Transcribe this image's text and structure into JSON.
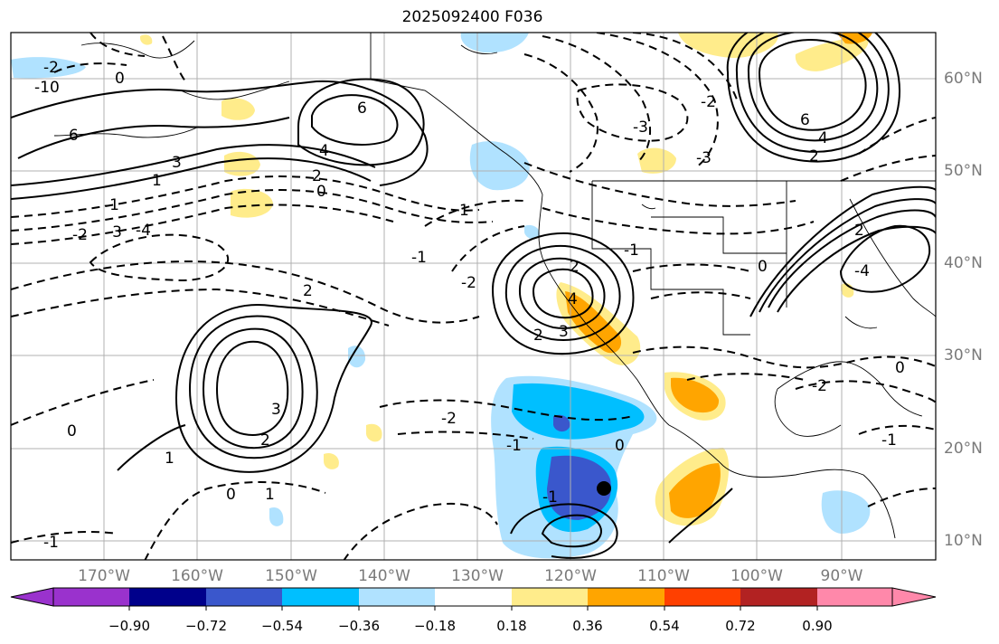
{
  "title": "2025092400 F036",
  "map": {
    "lon_labels": [
      "170°W",
      "160°W",
      "150°W",
      "140°W",
      "130°W",
      "120°W",
      "110°W",
      "100°W",
      "90°W"
    ],
    "lat_labels": [
      "60°N",
      "50°N",
      "40°N",
      "30°N",
      "20°N",
      "10°N"
    ],
    "contour_labels": [
      "6",
      "4",
      "3",
      "2",
      "1",
      "0",
      "-2",
      "-3",
      "-4",
      "-1",
      "-10",
      "6",
      "4",
      "2",
      "0",
      "2",
      "1",
      "-1",
      "-2",
      "-3",
      "3",
      "2",
      "1",
      "0",
      "-1",
      "-2",
      "-2",
      "-1",
      "0",
      "1",
      "2",
      "3",
      "4",
      "6",
      "-4",
      "-3",
      "-2",
      "-1",
      "0",
      "2",
      "2",
      "0",
      "-1",
      "-2",
      "-1",
      "0"
    ],
    "marker": "black-dot"
  },
  "colorbar": {
    "tick_labels": [
      "−0.90",
      "−0.72",
      "−0.54",
      "−0.36",
      "−0.18",
      "0.18",
      "0.36",
      "0.54",
      "0.72",
      "0.90"
    ],
    "colors": [
      "#9a32cd",
      "#00008b",
      "#3a57cc",
      "#00bfff",
      "#b0e2ff",
      "#ffffff",
      "#ffec8b",
      "#ffa500",
      "#ff4000",
      "#b22222",
      "#ff88aa"
    ]
  }
}
